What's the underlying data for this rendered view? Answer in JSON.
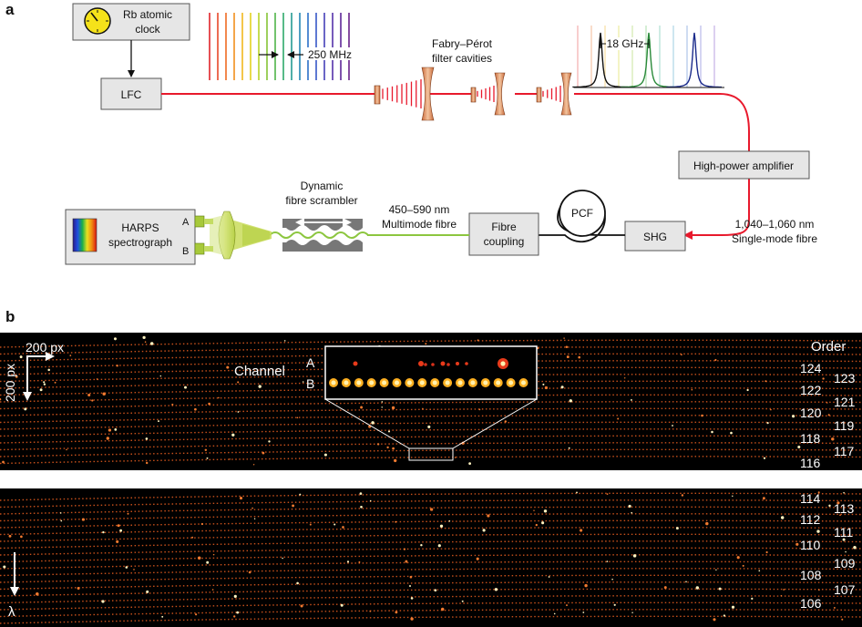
{
  "panel_a": {
    "label": "a",
    "clock": {
      "line1": "Rb atomic",
      "line2": "clock"
    },
    "lfc": "LFC",
    "spacing": "250 MHz",
    "fp": {
      "line1": "Fabry–Pérot",
      "line2": "filter cavities"
    },
    "filtered_spacing": "18 GHz",
    "amplifier": "High-power amplifier",
    "shg": "SHG",
    "sm_fibre": {
      "line1": "1,040–1,060 nm",
      "line2": "Single-mode fibre"
    },
    "pcf": "PCF",
    "fibre_coupling": {
      "line1": "Fibre",
      "line2": "coupling"
    },
    "mm_fibre": {
      "line1": "450–590 nm",
      "line2": "Multimode fibre"
    },
    "scrambler": {
      "line1": "Dynamic",
      "line2": "fibre scrambler"
    },
    "harps": {
      "line1": "HARPS",
      "line2": "spectrograph"
    },
    "channel_a": "A",
    "channel_b": "B",
    "colors": {
      "laser": "#e8192c",
      "green_fibre": "#8cc63f",
      "box": "#e6e6e6"
    }
  },
  "panel_b": {
    "label": "b",
    "scale_x": "200 px",
    "scale_y": "200 px",
    "order_title": "Order",
    "channel": "Channel",
    "inset_a": "A",
    "inset_b": "B",
    "lambda": "λ",
    "orders_top": [
      "124",
      "123",
      "122",
      "121",
      "120",
      "119",
      "118",
      "117",
      "116"
    ],
    "orders_bottom": [
      "114",
      "113",
      "112",
      "111",
      "110",
      "109",
      "108",
      "107",
      "106"
    ],
    "colors": {
      "background": "#000000",
      "line": "#d2541c"
    }
  }
}
